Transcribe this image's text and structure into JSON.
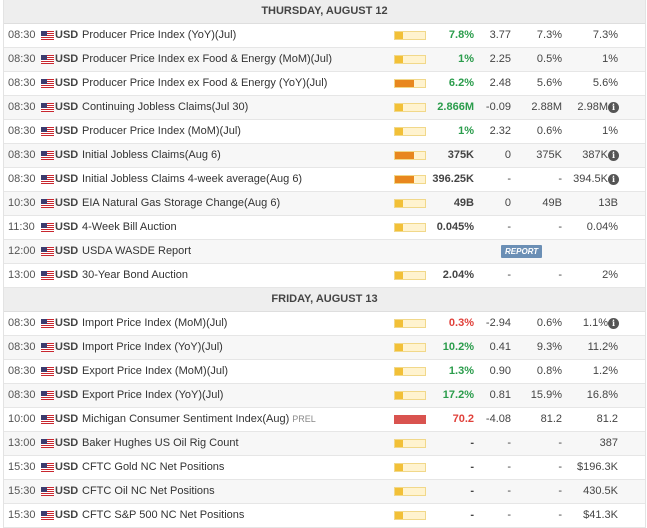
{
  "days": [
    {
      "header": "THURSDAY, AUGUST 12",
      "rows": [
        {
          "time": "08:30",
          "currency": "USD",
          "event": "Producer Price Index (YoY)(Jul)",
          "prel": "",
          "impact": "low",
          "actual": "7.8%",
          "actual_dir": "pos",
          "surprise": "3.77",
          "consensus": "7.3%",
          "previous": "7.3%",
          "info": false,
          "report": ""
        },
        {
          "time": "08:30",
          "currency": "USD",
          "event": "Producer Price Index ex Food & Energy (MoM)(Jul)",
          "prel": "",
          "impact": "low",
          "actual": "1%",
          "actual_dir": "pos",
          "surprise": "2.25",
          "consensus": "0.5%",
          "previous": "1%",
          "info": false,
          "report": ""
        },
        {
          "time": "08:30",
          "currency": "USD",
          "event": "Producer Price Index ex Food & Energy (YoY)(Jul)",
          "prel": "",
          "impact": "medium",
          "actual": "6.2%",
          "actual_dir": "pos",
          "surprise": "2.48",
          "consensus": "5.6%",
          "previous": "5.6%",
          "info": false,
          "report": ""
        },
        {
          "time": "08:30",
          "currency": "USD",
          "event": "Continuing Jobless Claims(Jul 30)",
          "prel": "",
          "impact": "low",
          "actual": "2.866M",
          "actual_dir": "pos",
          "surprise": "-0.09",
          "consensus": "2.88M",
          "previous": "2.98M",
          "info": true,
          "report": ""
        },
        {
          "time": "08:30",
          "currency": "USD",
          "event": "Producer Price Index (MoM)(Jul)",
          "prel": "",
          "impact": "low",
          "actual": "1%",
          "actual_dir": "pos",
          "surprise": "2.32",
          "consensus": "0.6%",
          "previous": "1%",
          "info": false,
          "report": ""
        },
        {
          "time": "08:30",
          "currency": "USD",
          "event": "Initial Jobless Claims(Aug 6)",
          "prel": "",
          "impact": "medium",
          "actual": "375K",
          "actual_dir": "neutral",
          "surprise": "0",
          "consensus": "375K",
          "previous": "387K",
          "info": true,
          "report": ""
        },
        {
          "time": "08:30",
          "currency": "USD",
          "event": "Initial Jobless Claims 4-week average(Aug 6)",
          "prel": "",
          "impact": "medium",
          "actual": "396.25K",
          "actual_dir": "neutral",
          "surprise": "-",
          "consensus": "-",
          "previous": "394.5K",
          "info": true,
          "report": ""
        },
        {
          "time": "10:30",
          "currency": "USD",
          "event": "EIA Natural Gas Storage Change(Aug 6)",
          "prel": "",
          "impact": "low",
          "actual": "49B",
          "actual_dir": "neutral",
          "surprise": "0",
          "consensus": "49B",
          "previous": "13B",
          "info": false,
          "report": ""
        },
        {
          "time": "11:30",
          "currency": "USD",
          "event": "4-Week Bill Auction",
          "prel": "",
          "impact": "low",
          "actual": "0.045%",
          "actual_dir": "neutral",
          "surprise": "-",
          "consensus": "-",
          "previous": "0.04%",
          "info": false,
          "report": ""
        },
        {
          "time": "12:00",
          "currency": "USD",
          "event": "USDA WASDE Report",
          "prel": "",
          "impact": "none",
          "actual": "",
          "actual_dir": "neutral",
          "surprise": "",
          "consensus": "",
          "previous": "",
          "info": false,
          "report": "REPORT"
        },
        {
          "time": "13:00",
          "currency": "USD",
          "event": "30-Year Bond Auction",
          "prel": "",
          "impact": "low",
          "actual": "2.04%",
          "actual_dir": "neutral",
          "surprise": "-",
          "consensus": "-",
          "previous": "2%",
          "info": false,
          "report": ""
        }
      ]
    },
    {
      "header": "FRIDAY, AUGUST 13",
      "rows": [
        {
          "time": "08:30",
          "currency": "USD",
          "event": "Import Price Index (MoM)(Jul)",
          "prel": "",
          "impact": "low",
          "actual": "0.3%",
          "actual_dir": "neg",
          "surprise": "-2.94",
          "consensus": "0.6%",
          "previous": "1.1%",
          "info": true,
          "report": ""
        },
        {
          "time": "08:30",
          "currency": "USD",
          "event": "Import Price Index (YoY)(Jul)",
          "prel": "",
          "impact": "low",
          "actual": "10.2%",
          "actual_dir": "pos",
          "surprise": "0.41",
          "consensus": "9.3%",
          "previous": "11.2%",
          "info": false,
          "report": ""
        },
        {
          "time": "08:30",
          "currency": "USD",
          "event": "Export Price Index (MoM)(Jul)",
          "prel": "",
          "impact": "low",
          "actual": "1.3%",
          "actual_dir": "pos",
          "surprise": "0.90",
          "consensus": "0.8%",
          "previous": "1.2%",
          "info": false,
          "report": ""
        },
        {
          "time": "08:30",
          "currency": "USD",
          "event": "Export Price Index (YoY)(Jul)",
          "prel": "",
          "impact": "low",
          "actual": "17.2%",
          "actual_dir": "pos",
          "surprise": "0.81",
          "consensus": "15.9%",
          "previous": "16.8%",
          "info": false,
          "report": ""
        },
        {
          "time": "10:00",
          "currency": "USD",
          "event": "Michigan Consumer Sentiment Index(Aug)",
          "prel": "PREL",
          "impact": "high",
          "actual": "70.2",
          "actual_dir": "neg",
          "surprise": "-4.08",
          "consensus": "81.2",
          "previous": "81.2",
          "info": false,
          "report": ""
        },
        {
          "time": "13:00",
          "currency": "USD",
          "event": "Baker Hughes US Oil Rig Count",
          "prel": "",
          "impact": "low",
          "actual": "-",
          "actual_dir": "neutral",
          "surprise": "-",
          "consensus": "-",
          "previous": "387",
          "info": false,
          "report": ""
        },
        {
          "time": "15:30",
          "currency": "USD",
          "event": "CFTC Gold NC Net Positions",
          "prel": "",
          "impact": "low",
          "actual": "-",
          "actual_dir": "neutral",
          "surprise": "-",
          "consensus": "-",
          "previous": "$196.3K",
          "info": false,
          "report": ""
        },
        {
          "time": "15:30",
          "currency": "USD",
          "event": "CFTC Oil NC Net Positions",
          "prel": "",
          "impact": "low",
          "actual": "-",
          "actual_dir": "neutral",
          "surprise": "-",
          "consensus": "-",
          "previous": "430.5K",
          "info": false,
          "report": ""
        },
        {
          "time": "15:30",
          "currency": "USD",
          "event": "CFTC S&P 500 NC Net Positions",
          "prel": "",
          "impact": "low",
          "actual": "-",
          "actual_dir": "neutral",
          "surprise": "-",
          "consensus": "-",
          "previous": "$41.3K",
          "info": false,
          "report": ""
        }
      ]
    }
  ],
  "icons": {
    "flag": "us-flag-icon",
    "info": "info-icon"
  },
  "info_glyph": "i",
  "colors": {
    "positive": "#2a9c4b",
    "negative": "#e0403a",
    "impact_low": "#f2c037",
    "impact_medium": "#e8871e",
    "impact_high": "#d9534f",
    "report_button": "#6b8fb5"
  }
}
